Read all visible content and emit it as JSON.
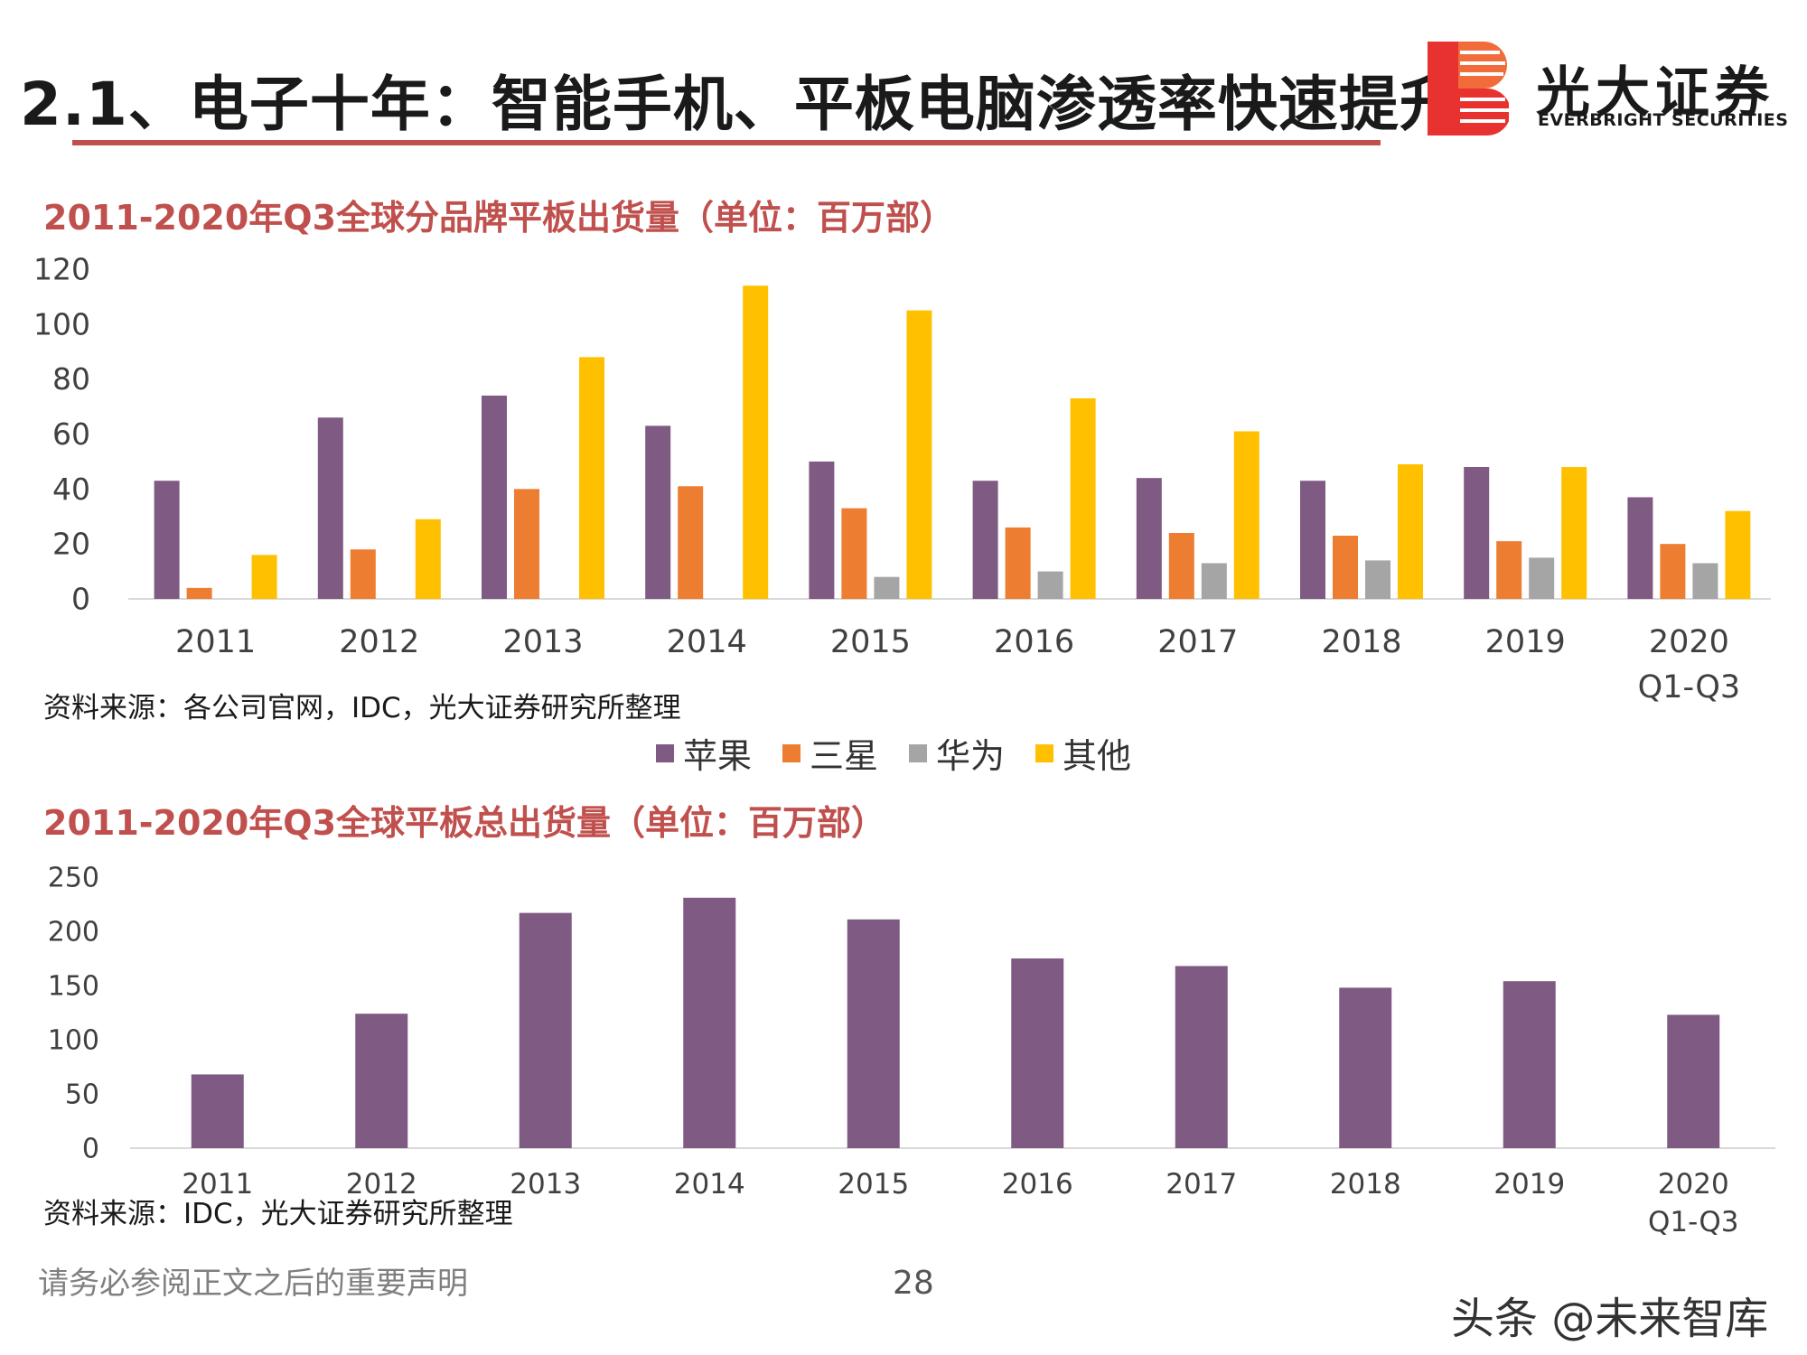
{
  "header": {
    "title": "2.1、电子十年：智能手机、平板电脑渗透率快速提升",
    "logo_cn": "光大证券",
    "logo_en": "EVERBRIGHT SECURITIES"
  },
  "colors": {
    "apple": "#7f5a83",
    "samsung": "#ed7d31",
    "huawei": "#a5a5a5",
    "others": "#ffc000",
    "accent": "#c0504d",
    "total": "#7f5a83"
  },
  "chart_data": [
    {
      "type": "bar",
      "title": "2011-2020年Q3全球分品牌平板出货量（单位：百万部）",
      "categories": [
        "2011",
        "2012",
        "2013",
        "2014",
        "2015",
        "2016",
        "2017",
        "2018",
        "2019",
        "2020\nQ1-Q3"
      ],
      "series": [
        {
          "name": "苹果",
          "values": [
            43,
            66,
            74,
            63,
            50,
            43,
            44,
            43,
            48,
            37
          ]
        },
        {
          "name": "三星",
          "values": [
            4,
            18,
            40,
            41,
            33,
            26,
            24,
            23,
            21,
            20
          ]
        },
        {
          "name": "华为",
          "values": [
            0,
            0,
            0,
            0,
            8,
            10,
            13,
            14,
            15,
            13
          ]
        },
        {
          "name": "其他",
          "values": [
            16,
            29,
            88,
            114,
            105,
            73,
            61,
            49,
            48,
            32
          ]
        }
      ],
      "ylim": [
        0,
        120
      ],
      "yticks": [
        0,
        20,
        40,
        60,
        80,
        100,
        120
      ],
      "legend": "bottom",
      "grid": false,
      "source": "资料来源：各公司官网，IDC，光大证券研究所整理"
    },
    {
      "type": "bar",
      "title": "2011-2020年Q3全球平板总出货量（单位：百万部）",
      "categories": [
        "2011",
        "2012",
        "2013",
        "2014",
        "2015",
        "2016",
        "2017",
        "2018",
        "2019",
        "2020\nQ1-Q3"
      ],
      "values": [
        68,
        124,
        217,
        231,
        211,
        175,
        168,
        148,
        154,
        123
      ],
      "ylim": [
        0,
        250
      ],
      "yticks": [
        0,
        50,
        100,
        150,
        200,
        250
      ],
      "grid": false,
      "source": "资料来源：IDC，光大证券研究所整理"
    }
  ],
  "footer": {
    "disclaimer": "请务必参阅正文之后的重要声明",
    "page": "28",
    "watermark": "头条 @未来智库"
  }
}
